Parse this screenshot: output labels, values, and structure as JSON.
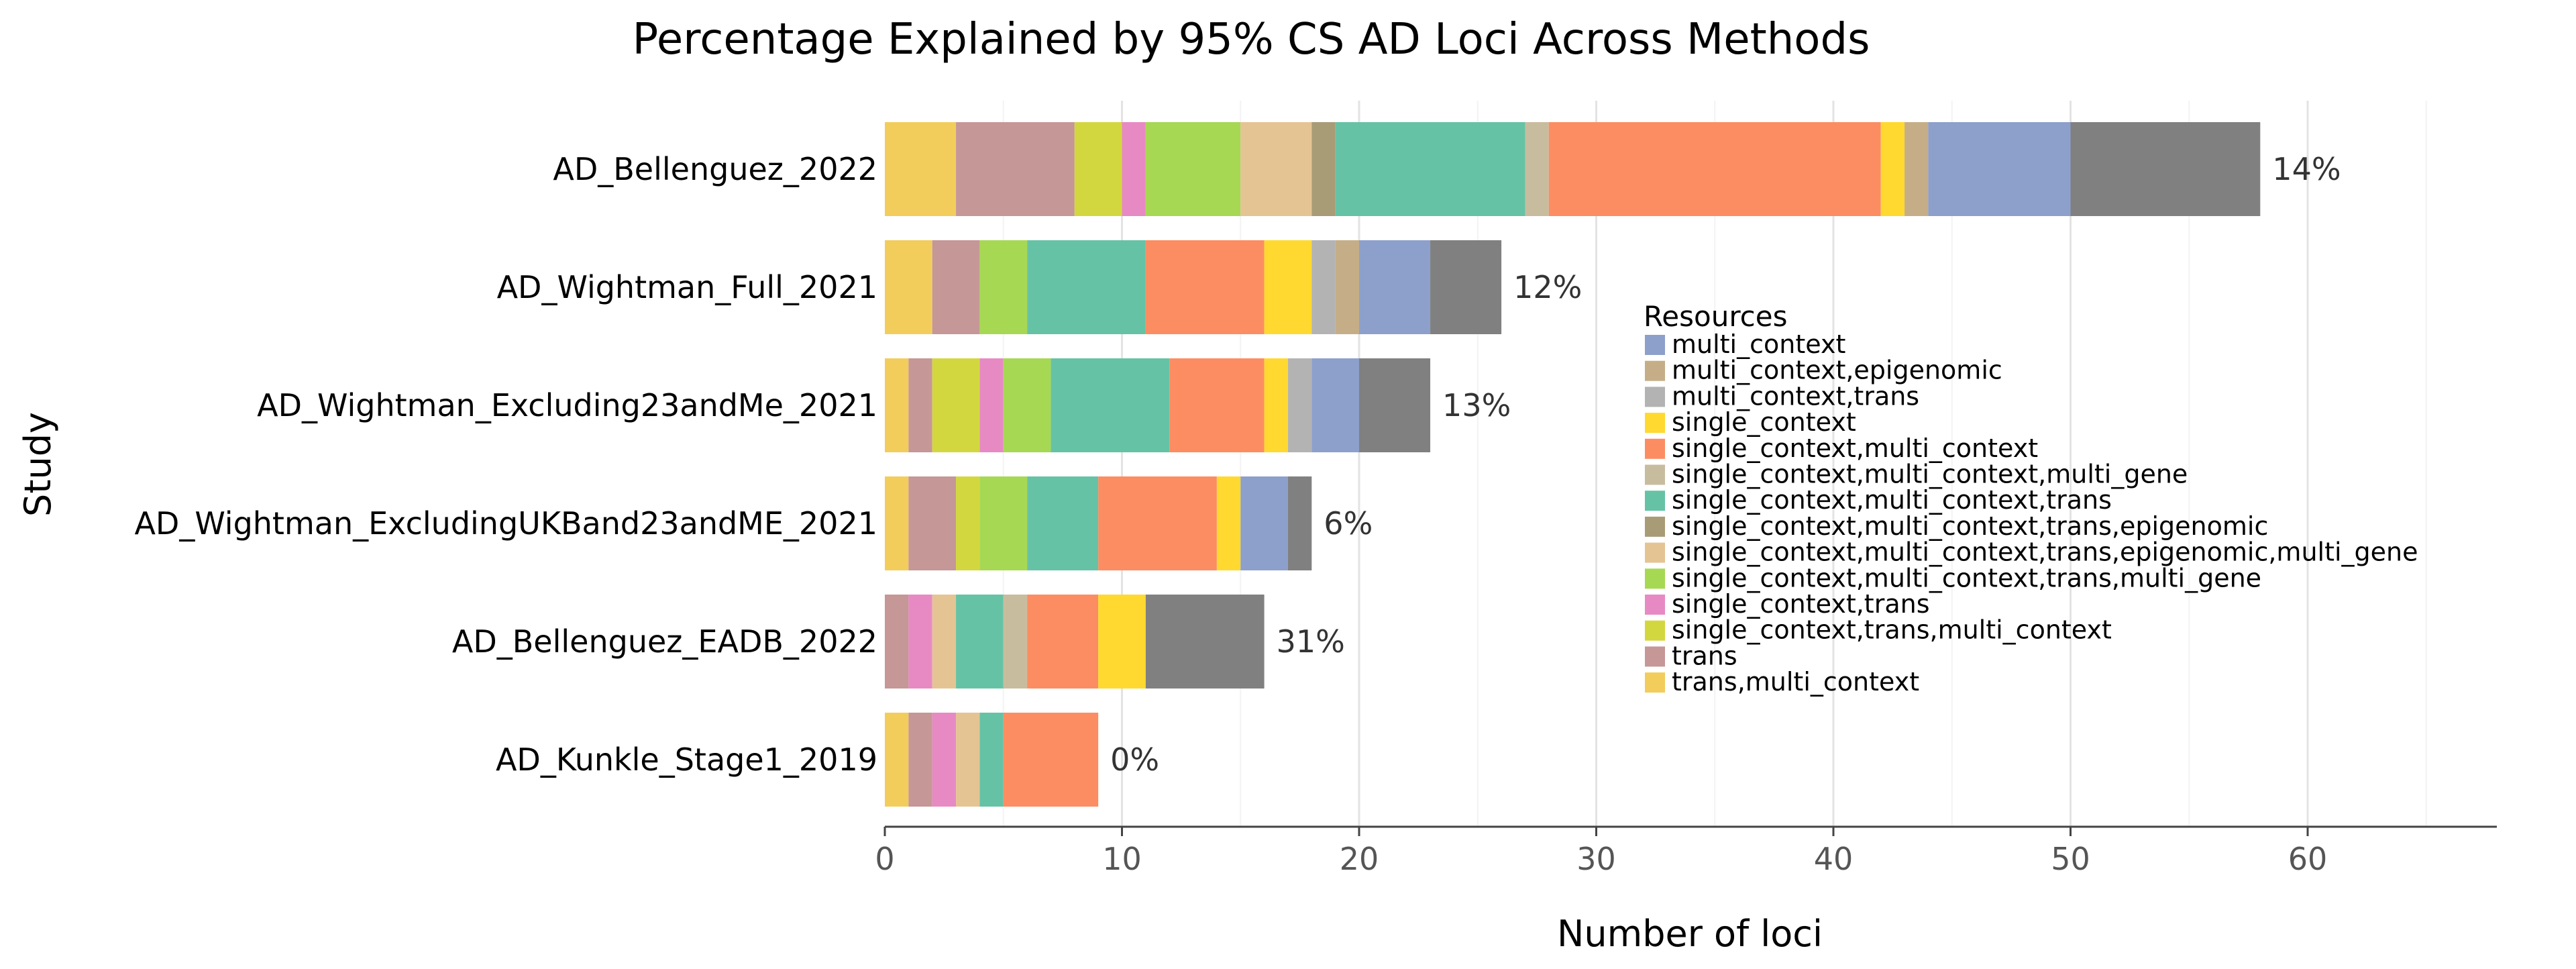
{
  "chart_data": {
    "type": "bar",
    "orientation": "horizontal",
    "stacked": true,
    "title": "Percentage Explained by 95% CS AD Loci Across Methods",
    "xlabel": "Number of loci",
    "ylabel": "Study",
    "xlim": [
      0,
      68
    ],
    "xticks": [
      0,
      10,
      20,
      30,
      40,
      50,
      60
    ],
    "grid": "vertical",
    "legend_title": "Resources",
    "legend_position": "right",
    "categories": [
      "AD_Bellenguez_2022",
      "AD_Wightman_Full_2021",
      "AD_Wightman_Excluding23andMe_2021",
      "AD_Wightman_ExcludingUKBand23andME_2021",
      "AD_Bellenguez_EADB_2022",
      "AD_Kunkle_Stage1_2019"
    ],
    "percent_labels": [
      "14%",
      "12%",
      "13%",
      "6%",
      "31%",
      "0%"
    ],
    "series": [
      {
        "name": "trans,multi_context",
        "color": "#f2cd5c",
        "values": [
          3,
          2,
          1,
          1,
          0,
          1
        ]
      },
      {
        "name": "trans",
        "color": "#c59796",
        "values": [
          5,
          2,
          1,
          2,
          1,
          1
        ]
      },
      {
        "name": "single_context,trans,multi_context",
        "color": "#d3d73f",
        "values": [
          2,
          0,
          2,
          1,
          0,
          0
        ]
      },
      {
        "name": "single_context,trans",
        "color": "#e78ac3",
        "values": [
          1,
          0,
          1,
          0,
          1,
          1
        ]
      },
      {
        "name": "single_context,multi_context,trans,multi_gene",
        "color": "#a6d854",
        "values": [
          4,
          2,
          2,
          2,
          0,
          0
        ]
      },
      {
        "name": "single_context,multi_context,trans,epigenomic,multi_gene",
        "color": "#e5c494",
        "values": [
          3,
          0,
          0,
          0,
          1,
          1
        ]
      },
      {
        "name": "single_context,multi_context,trans,epigenomic",
        "color": "#a89c77",
        "values": [
          1,
          0,
          0,
          0,
          0,
          0
        ]
      },
      {
        "name": "single_context,multi_context,trans",
        "color": "#66c2a5",
        "values": [
          8,
          5,
          5,
          3,
          2,
          1
        ]
      },
      {
        "name": "single_context,multi_context,multi_gene",
        "color": "#c8bc9f",
        "values": [
          1,
          0,
          0,
          0,
          1,
          0
        ]
      },
      {
        "name": "single_context,multi_context",
        "color": "#fc8d62",
        "values": [
          14,
          5,
          4,
          5,
          3,
          4
        ]
      },
      {
        "name": "single_context",
        "color": "#ffd92f",
        "values": [
          1,
          2,
          1,
          1,
          2,
          0
        ]
      },
      {
        "name": "multi_context,trans",
        "color": "#b3b3b3",
        "values": [
          0,
          1,
          1,
          0,
          0,
          0
        ]
      },
      {
        "name": "multi_context,epigenomic",
        "color": "#c5ae87",
        "values": [
          1,
          1,
          0,
          0,
          0,
          0
        ]
      },
      {
        "name": "multi_context",
        "color": "#8da0cb",
        "values": [
          6,
          3,
          2,
          2,
          0,
          0
        ]
      },
      {
        "name": "",
        "color": "#808080",
        "values": [
          8,
          3,
          3,
          1,
          5,
          0
        ]
      }
    ]
  }
}
